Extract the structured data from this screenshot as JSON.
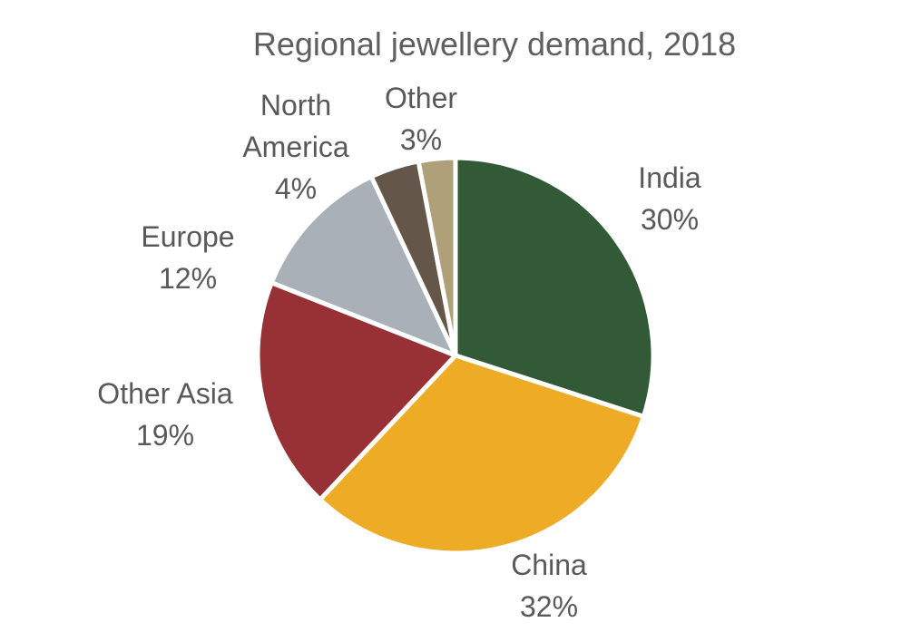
{
  "chart_data": {
    "type": "pie",
    "title": "Regional jewellery demand, 2018",
    "slices": [
      {
        "label_lines": [
          "India"
        ],
        "value": 30,
        "value_label": "30%",
        "color": "#335a37"
      },
      {
        "label_lines": [
          "China"
        ],
        "value": 32,
        "value_label": "32%",
        "color": "#eeab25"
      },
      {
        "label_lines": [
          "Other Asia"
        ],
        "value": 19,
        "value_label": "19%",
        "color": "#983136"
      },
      {
        "label_lines": [
          "Europe"
        ],
        "value": 12,
        "value_label": "12%",
        "color": "#a9b0b8"
      },
      {
        "label_lines": [
          "North",
          "America"
        ],
        "value": 4,
        "value_label": "4%",
        "color": "#65564a"
      },
      {
        "label_lines": [
          "Other"
        ],
        "value": 3,
        "value_label": "3%",
        "color": "#afa07a"
      }
    ],
    "legend": "none",
    "start": "top",
    "direction": "clockwise"
  }
}
